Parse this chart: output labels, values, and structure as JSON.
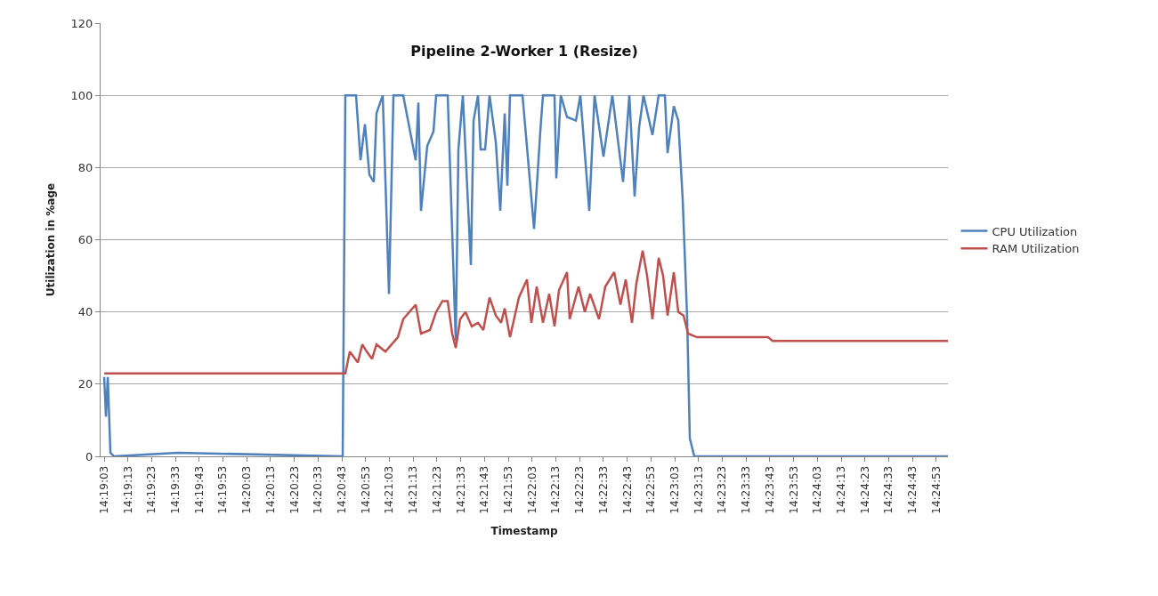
{
  "chart_data": {
    "type": "line",
    "title": "Pipeline 2-Worker 1 (Resize)",
    "xlabel": "Timestamp",
    "ylabel": "Utilization in %age",
    "series": [
      {
        "name": "CPU Utilization",
        "color": "#4f81bd",
        "x": [
          14.3175,
          14.31771,
          14.31792,
          14.31823,
          14.31864,
          14.32613,
          14.34537,
          14.34568,
          14.34693,
          14.34745,
          14.34797,
          14.34849,
          14.34901,
          14.34932,
          14.35005,
          14.35078,
          14.3513,
          14.35244,
          14.3539,
          14.35421,
          14.35452,
          14.35525,
          14.35598,
          14.35629,
          14.35764,
          14.35858,
          14.35889,
          14.35941,
          14.36035,
          14.36066,
          14.36118,
          14.36149,
          14.36201,
          14.36253,
          14.36326,
          14.36378,
          14.3643,
          14.36461,
          14.36492,
          14.36638,
          14.36773,
          14.36846,
          14.36877,
          14.37012,
          14.37033,
          14.37085,
          14.37158,
          14.37262,
          14.37314,
          14.37418,
          14.3748,
          14.37584,
          14.37688,
          14.37813,
          14.37886,
          14.37948,
          14.38,
          14.38052,
          14.38156,
          14.38229,
          14.38302,
          14.38333,
          14.38406,
          14.38458,
          14.3851,
          14.38562,
          14.38593,
          14.38645,
          14.41609
        ],
        "values": [
          22,
          11,
          22,
          1,
          0,
          1,
          0,
          100,
          100,
          82,
          92,
          78,
          76,
          95,
          100,
          45,
          100,
          100,
          82,
          98,
          68,
          86,
          90,
          100,
          100,
          32,
          85,
          100,
          53,
          93,
          100,
          85,
          85,
          100,
          87,
          68,
          95,
          75,
          100,
          100,
          63,
          90,
          100,
          100,
          77,
          100,
          94,
          93,
          100,
          68,
          100,
          83,
          100,
          76,
          100,
          72,
          91,
          100,
          89,
          100,
          100,
          84,
          97,
          93,
          71,
          38,
          5,
          0,
          0
        ]
      },
      {
        "name": "RAM Utilization",
        "color": "#c0504d",
        "x": [
          14.3175,
          14.34568,
          14.3462,
          14.34714,
          14.34766,
          14.34818,
          14.3488,
          14.34932,
          14.35036,
          14.35182,
          14.35244,
          14.35317,
          14.3539,
          14.35452,
          14.35556,
          14.35629,
          14.35702,
          14.35764,
          14.35816,
          14.35858,
          14.3591,
          14.35972,
          14.36045,
          14.36118,
          14.3618,
          14.36253,
          14.36326,
          14.36388,
          14.3643,
          14.36492,
          14.36596,
          14.3669,
          14.36742,
          14.36804,
          14.36877,
          14.3695,
          14.37012,
          14.37064,
          14.37158,
          14.37189,
          14.37293,
          14.37366,
          14.37428,
          14.37532,
          14.37605,
          14.37709,
          14.37782,
          14.37844,
          14.37917,
          14.37969,
          14.38042,
          14.38094,
          14.38156,
          14.38229,
          14.38281,
          14.38333,
          14.38406,
          14.38458,
          14.3852,
          14.38572,
          14.38676,
          14.39508,
          14.3956,
          14.41609
        ],
        "values": [
          23,
          23,
          29,
          26,
          31,
          29,
          27,
          31,
          29,
          33,
          38,
          40,
          42,
          34,
          35,
          40,
          43,
          43,
          34,
          30,
          38,
          40,
          36,
          37,
          35,
          44,
          39,
          37,
          41,
          33,
          44,
          49,
          37,
          47,
          37,
          45,
          36,
          46,
          51,
          38,
          47,
          40,
          45,
          38,
          47,
          51,
          42,
          49,
          37,
          48,
          57,
          50,
          38,
          55,
          50,
          39,
          51,
          40,
          39,
          34,
          33,
          33,
          32,
          32
        ]
      }
    ],
    "xlim": [
      14.31708,
      14.41609
    ],
    "xticks": [
      {
        "value": 14.3175,
        "label": "14:19:03"
      },
      {
        "value": 14.32028,
        "label": "14:19:13"
      },
      {
        "value": 14.32306,
        "label": "14:19:23"
      },
      {
        "value": 14.32583,
        "label": "14:19:33"
      },
      {
        "value": 14.32861,
        "label": "14:19:43"
      },
      {
        "value": 14.33139,
        "label": "14:19:53"
      },
      {
        "value": 14.33417,
        "label": "14:20:03"
      },
      {
        "value": 14.33694,
        "label": "14:20:13"
      },
      {
        "value": 14.33972,
        "label": "14:20:23"
      },
      {
        "value": 14.3425,
        "label": "14:20:33"
      },
      {
        "value": 14.34528,
        "label": "14:20:43"
      },
      {
        "value": 14.34806,
        "label": "14:20:53"
      },
      {
        "value": 14.35083,
        "label": "14:21:03"
      },
      {
        "value": 14.35361,
        "label": "14:21:13"
      },
      {
        "value": 14.35639,
        "label": "14:21:23"
      },
      {
        "value": 14.35917,
        "label": "14:21:33"
      },
      {
        "value": 14.36194,
        "label": "14:21:43"
      },
      {
        "value": 14.36472,
        "label": "14:21:53"
      },
      {
        "value": 14.3675,
        "label": "14:22:03"
      },
      {
        "value": 14.37028,
        "label": "14:22:13"
      },
      {
        "value": 14.37306,
        "label": "14:22:23"
      },
      {
        "value": 14.37583,
        "label": "14:22:33"
      },
      {
        "value": 14.37861,
        "label": "14:22:43"
      },
      {
        "value": 14.38139,
        "label": "14:22:53"
      },
      {
        "value": 14.38417,
        "label": "14:23:03"
      },
      {
        "value": 14.38694,
        "label": "14:23:13"
      },
      {
        "value": 14.38972,
        "label": "14:23:23"
      },
      {
        "value": 14.3925,
        "label": "14:23:33"
      },
      {
        "value": 14.39528,
        "label": "14:23:43"
      },
      {
        "value": 14.39806,
        "label": "14:23:53"
      },
      {
        "value": 14.40083,
        "label": "14:24:03"
      },
      {
        "value": 14.40361,
        "label": "14:24:13"
      },
      {
        "value": 14.40639,
        "label": "14:24:23"
      },
      {
        "value": 14.40917,
        "label": "14:24:33"
      },
      {
        "value": 14.41194,
        "label": "14:24:43"
      },
      {
        "value": 14.41472,
        "label": "14:24:53"
      }
    ],
    "ylim": [
      0,
      120
    ],
    "yticks": [
      0,
      20,
      40,
      60,
      80,
      100,
      120
    ],
    "grid": "y",
    "legend": "right",
    "marker": "none",
    "line_style": "solid"
  }
}
